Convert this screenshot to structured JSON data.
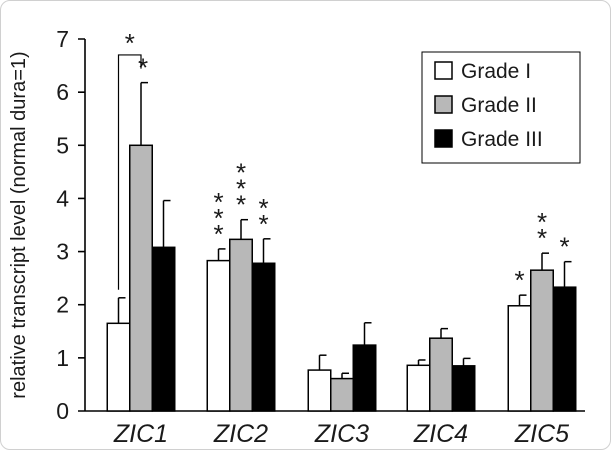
{
  "chart_data": {
    "type": "bar",
    "title": "",
    "xlabel": "",
    "ylabel": "relative transcript level (normal dura=1)",
    "ylim": [
      0,
      7
    ],
    "yticks": [
      0,
      1,
      2,
      3,
      4,
      5,
      6,
      7
    ],
    "grid": false,
    "legend_position": "top-right",
    "categories": [
      "ZIC1",
      "ZIC2",
      "ZIC3",
      "ZIC4",
      "ZIC5"
    ],
    "series": [
      {
        "name": "Grade I",
        "color": "#ffffff",
        "values": [
          1.65,
          2.83,
          0.77,
          0.86,
          1.98
        ],
        "errors": [
          0.48,
          0.22,
          0.28,
          0.1,
          0.2
        ]
      },
      {
        "name": "Grade II",
        "color": "#b8b8b8",
        "values": [
          5.0,
          3.23,
          0.61,
          1.37,
          2.65
        ],
        "errors": [
          1.18,
          0.37,
          0.1,
          0.18,
          0.32
        ]
      },
      {
        "name": "Grade III",
        "color": "#000000",
        "values": [
          3.08,
          2.78,
          1.24,
          0.85,
          2.33
        ],
        "errors": [
          0.88,
          0.46,
          0.42,
          0.14,
          0.48
        ]
      }
    ],
    "significance": [
      {
        "category": 0,
        "series": 1,
        "stars": 1
      },
      {
        "category": 1,
        "series": 0,
        "stars": 3
      },
      {
        "category": 1,
        "series": 1,
        "stars": 3
      },
      {
        "category": 1,
        "series": 2,
        "stars": 2
      },
      {
        "category": 4,
        "series": 0,
        "stars": 1
      },
      {
        "category": 4,
        "series": 1,
        "stars": 2
      },
      {
        "category": 4,
        "series": 2,
        "stars": 1
      }
    ],
    "bracket": {
      "category": 0,
      "from_series": 0,
      "to_series": 1,
      "label": "*"
    }
  }
}
